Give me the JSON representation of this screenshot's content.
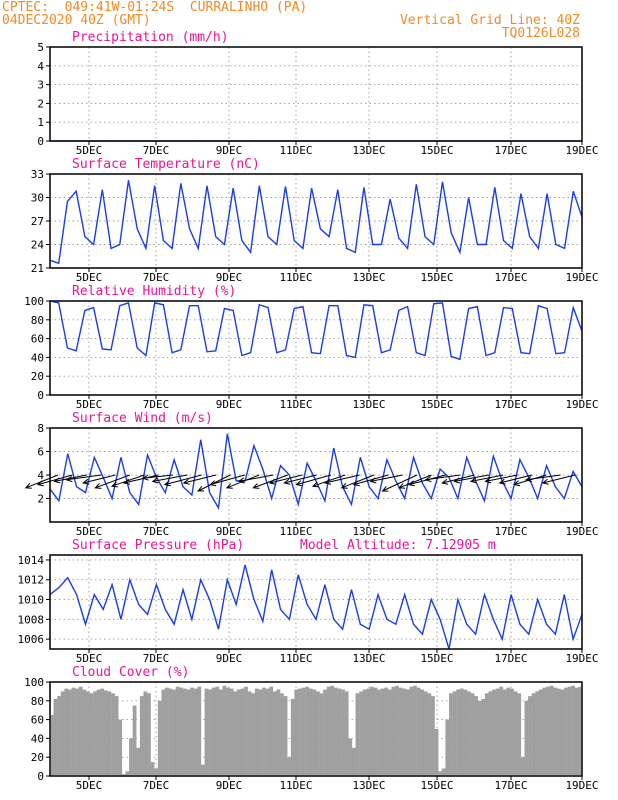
{
  "header": {
    "line1_left": "CPTEC:  049:41W-01:24S  CURRALINHO (PA)",
    "line2_left": "04DEC2020 40Z (GMT)",
    "line1_right": "Vertical Grid Line: 40Z",
    "line2_right": "TQ0126L028"
  },
  "colors": {
    "header": "#f08a24",
    "title": "#e8159a",
    "line": "#1a3ee6",
    "cloud": "#a0a0a0",
    "grid": "#9a9a9a"
  },
  "x_ticks": [
    "5DEC",
    "7DEC",
    "9DEC",
    "11DEC",
    "13DEC",
    "15DEC",
    "17DEC",
    "19DEC"
  ],
  "chart_data": [
    {
      "type": "line",
      "title": "Precipitation (mm/h)",
      "ylim": [
        0,
        5
      ],
      "yticks": [
        "0",
        "1",
        "2",
        "3",
        "4",
        "5"
      ],
      "series": [
        {
          "values": [
            0,
            0,
            0,
            0,
            0,
            0,
            0,
            0,
            0,
            0,
            0,
            0,
            0,
            0,
            0,
            0,
            0,
            0,
            0,
            0,
            0,
            0,
            0,
            0,
            0,
            0,
            0,
            0,
            0,
            0,
            0,
            0,
            0,
            0,
            0,
            0,
            0,
            0,
            0,
            0,
            0,
            0,
            0,
            0,
            0,
            0,
            0,
            0,
            0,
            0,
            0,
            0,
            0,
            0,
            0,
            0,
            0,
            0,
            0,
            0,
            0
          ]
        }
      ]
    },
    {
      "type": "line",
      "title": "Surface Temperature (nC)",
      "ylim": [
        21,
        33
      ],
      "yticks": [
        "21",
        "24",
        "27",
        "30",
        "33"
      ],
      "series": [
        {
          "values": [
            22.0,
            21.6,
            29.5,
            30.8,
            25.0,
            24.0,
            31.0,
            23.5,
            24.0,
            32.2,
            26.0,
            23.5,
            31.5,
            24.5,
            23.5,
            31.8,
            26.0,
            23.5,
            31.5,
            25.0,
            24.0,
            31.2,
            24.5,
            23.0,
            31.5,
            25.0,
            24.0,
            31.4,
            24.5,
            23.5,
            31.2,
            26.0,
            25.0,
            31.0,
            23.5,
            23.0,
            31.3,
            24.0,
            24.0,
            29.8,
            24.8,
            23.5,
            31.7,
            25.0,
            24.0,
            32.0,
            25.5,
            23.0,
            30.0,
            24.0,
            24.0,
            31.3,
            24.5,
            23.5,
            30.5,
            25.0,
            23.5,
            30.5,
            24.0,
            23.5,
            30.8,
            27.5
          ]
        }
      ]
    },
    {
      "type": "line",
      "title": "Relative Humidity (%)",
      "ylim": [
        0,
        100
      ],
      "yticks": [
        "0",
        "20",
        "40",
        "60",
        "80",
        "100"
      ],
      "series": [
        {
          "values": [
            100,
            98,
            50,
            47,
            90,
            93,
            49,
            48,
            95,
            98,
            50,
            42,
            98,
            96,
            45,
            48,
            95,
            95,
            46,
            47,
            92,
            90,
            42,
            45,
            96,
            93,
            45,
            48,
            92,
            94,
            45,
            44,
            95,
            95,
            42,
            40,
            96,
            95,
            45,
            48,
            90,
            94,
            45,
            42,
            97,
            98,
            41,
            38,
            92,
            94,
            42,
            45,
            93,
            92,
            45,
            44,
            95,
            92,
            44,
            45,
            93,
            68
          ]
        }
      ]
    },
    {
      "type": "line",
      "title": "Surface Wind (m/s)",
      "ylim": [
        0,
        8
      ],
      "yticks": [
        "2",
        "4",
        "6",
        "8"
      ],
      "series": [
        {
          "values": [
            2.8,
            1.8,
            5.8,
            3.0,
            2.5,
            5.5,
            3.8,
            2.0,
            5.5,
            2.5,
            1.5,
            5.7,
            3.8,
            2.5,
            5.3,
            3.0,
            2.3,
            7.0,
            2.5,
            1.2,
            7.5,
            3.5,
            3.5,
            6.5,
            4.5,
            2.0,
            4.8,
            4.0,
            1.5,
            5.0,
            3.5,
            1.8,
            6.3,
            3.0,
            1.5,
            5.5,
            3.0,
            2.0,
            5.3,
            3.5,
            2.0,
            5.5,
            3.3,
            2.0,
            4.5,
            3.8,
            2.0,
            5.5,
            3.5,
            1.8,
            5.6,
            3.5,
            2.0,
            5.3,
            3.8,
            2.0,
            4.8,
            3.0,
            2.0,
            4.3,
            3.0
          ]
        }
      ]
    },
    {
      "type": "line",
      "title": "Surface Pressure (hPa)",
      "subtitle": "Model Altitude: 7.12905 m",
      "ylim": [
        1005,
        1014.5
      ],
      "yticks": [
        "1006",
        "1008",
        "1010",
        "1012",
        "1014"
      ],
      "series": [
        {
          "values": [
            1010.5,
            1011.2,
            1012.2,
            1010.5,
            1007.5,
            1010.5,
            1009.0,
            1011.5,
            1008.0,
            1012.0,
            1009.5,
            1008.5,
            1011.5,
            1009.0,
            1007.5,
            1011.0,
            1008.0,
            1012.0,
            1010.0,
            1007.0,
            1012.0,
            1009.5,
            1013.5,
            1010.0,
            1007.8,
            1013.0,
            1009.0,
            1008.0,
            1012.5,
            1009.5,
            1008.0,
            1011.5,
            1008.0,
            1007.0,
            1011.0,
            1007.5,
            1007.0,
            1010.5,
            1008.0,
            1007.5,
            1010.5,
            1007.5,
            1006.5,
            1010.0,
            1008.0,
            1005.0,
            1010.0,
            1007.5,
            1006.5,
            1010.5,
            1008.0,
            1006.0,
            1010.5,
            1007.5,
            1006.5,
            1010.0,
            1007.5,
            1006.5,
            1010.5,
            1006.0,
            1008.5
          ]
        }
      ]
    },
    {
      "type": "bar",
      "title": "Cloud Cover (%)",
      "ylim": [
        0,
        100
      ],
      "yticks": [
        "0",
        "20",
        "40",
        "60",
        "80",
        "100"
      ],
      "series": [
        {
          "values": [
            65,
            82,
            85,
            90,
            93,
            92,
            94,
            93,
            95,
            92,
            90,
            88,
            90,
            92,
            93,
            91,
            90,
            88,
            85,
            60,
            2,
            5,
            40,
            75,
            30,
            85,
            90,
            88,
            15,
            8,
            80,
            92,
            94,
            93,
            92,
            95,
            94,
            93,
            92,
            94,
            93,
            95,
            12,
            93,
            92,
            94,
            95,
            92,
            96,
            94,
            93,
            90,
            92,
            93,
            95,
            90,
            88,
            93,
            92,
            94,
            93,
            95,
            90,
            92,
            88,
            85,
            20,
            82,
            92,
            93,
            94,
            95,
            93,
            92,
            90,
            88,
            92,
            95,
            96,
            94,
            93,
            92,
            90,
            40,
            30,
            88,
            90,
            92,
            93,
            95,
            94,
            92,
            93,
            94,
            92,
            95,
            96,
            94,
            93,
            92,
            95,
            96,
            94,
            92,
            90,
            88,
            85,
            50,
            5,
            8,
            60,
            88,
            90,
            92,
            93,
            92,
            90,
            88,
            85,
            80,
            82,
            88,
            90,
            92,
            93,
            95,
            92,
            94,
            93,
            90,
            88,
            20,
            80,
            85,
            88,
            90,
            92,
            94,
            95,
            96,
            94,
            93,
            92,
            94,
            95,
            96,
            94,
            95
          ]
        }
      ]
    }
  ],
  "wind_arrows": {
    "dx": [
      -14,
      -15,
      -14,
      -15,
      -14,
      -15,
      -14,
      -15,
      -13,
      -15,
      -16,
      -14,
      -14,
      -15,
      -14,
      -15,
      -15,
      -14,
      -14,
      -15,
      -14,
      -15,
      -14,
      -15,
      -14,
      -15,
      -14,
      -16,
      -15,
      -14,
      -15,
      -14,
      -14,
      -14,
      -14,
      -15,
      -14
    ],
    "dy": [
      8,
      6,
      4,
      3,
      5,
      8,
      7,
      5,
      2,
      4,
      6,
      5,
      10,
      6,
      8,
      4,
      8,
      5,
      5,
      6,
      7,
      5,
      8,
      6,
      4,
      10,
      8,
      6,
      3,
      5,
      4,
      4,
      4,
      5,
      6,
      3,
      5
    ]
  }
}
